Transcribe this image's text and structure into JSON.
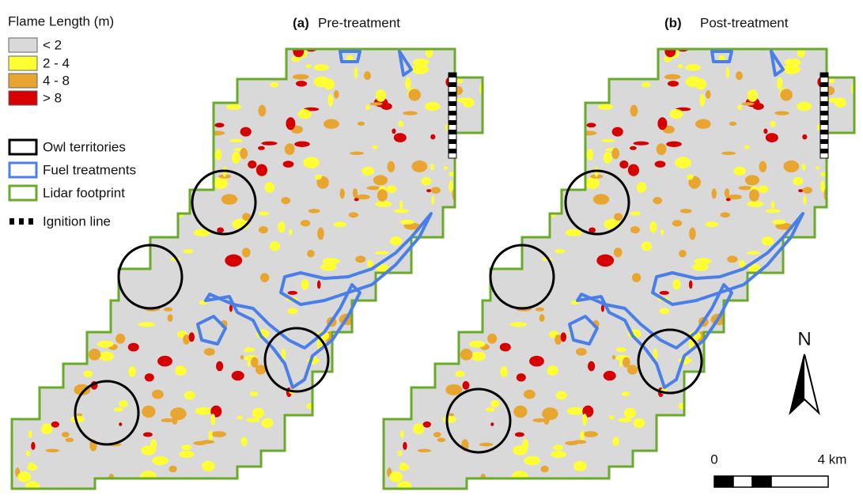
{
  "legend": {
    "title": "Flame Length (m)",
    "items": [
      "< 2",
      "2 - 4",
      "4 - 8",
      "> 8",
      "Owl territories",
      "Fuel treatments",
      "Lidar footprint",
      "Ignition line"
    ]
  },
  "panels": [
    {
      "label": "(a)",
      "title": "Pre-treatment"
    },
    {
      "label": "(b)",
      "title": "Post-treatment"
    }
  ],
  "north": "N",
  "scale": {
    "start": "0",
    "end": "4 km"
  }
}
